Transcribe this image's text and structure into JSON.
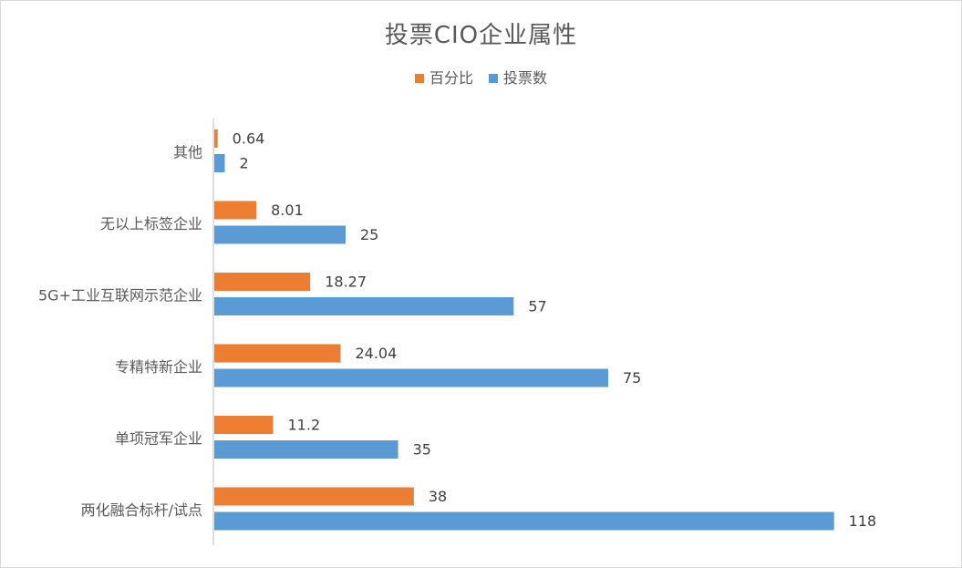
{
  "chart_data": {
    "type": "bar",
    "orientation": "horizontal",
    "title": "投票CIO企业属性",
    "categories": [
      "其他",
      "无以上标签企业",
      "5G+工业互联网示范企业",
      "专精特新企业",
      "单项冠军企业",
      "两化融合标杆/试点"
    ],
    "series": [
      {
        "name": "百分比",
        "color": "#ed7d31",
        "values": [
          0.64,
          8.01,
          18.27,
          24.04,
          11.2,
          38
        ],
        "labels": [
          "0.64",
          "8.01",
          "18.27",
          "24.04",
          "11.2",
          "38"
        ]
      },
      {
        "name": "投票数",
        "color": "#5b9bd5",
        "values": [
          2,
          25,
          57,
          75,
          35,
          118
        ],
        "labels": [
          "2",
          "25",
          "57",
          "75",
          "35",
          "118"
        ]
      }
    ],
    "xlim": [
      0,
      120
    ],
    "xlabel": "",
    "ylabel": "",
    "grid": false,
    "legend_position": "top"
  }
}
